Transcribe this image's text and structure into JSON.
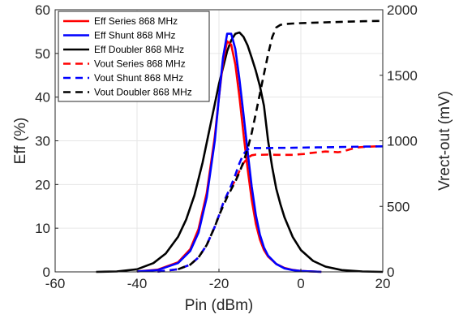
{
  "chart_data": {
    "type": "line",
    "xlabel": "Pin (dBm)",
    "ylabel": "Eff (%)",
    "y2label": "Vrect-out (mV)",
    "xlim": [
      -60,
      20
    ],
    "ylim": [
      0,
      60
    ],
    "y2lim": [
      0,
      2000
    ],
    "xticks": [
      "-60",
      "-40",
      "-20",
      "0",
      "20"
    ],
    "yticks": [
      "0",
      "10",
      "20",
      "30",
      "40",
      "50",
      "60"
    ],
    "y2ticks": [
      "0",
      "500",
      "1000",
      "1500",
      "2000"
    ],
    "grid": true,
    "legend_position": "top-left",
    "series": [
      {
        "name": "Eff Series 868 MHz",
        "axis": "left",
        "color": "#ff0000",
        "dash": "solid",
        "x": [
          -40,
          -35,
          -30,
          -27,
          -25,
          -23,
          -21,
          -20,
          -19,
          -18,
          -17,
          -16,
          -15,
          -14,
          -13,
          -12,
          -11,
          -10,
          -9,
          -8,
          -6,
          -4,
          -2,
          0,
          5
        ],
        "y": [
          0.1,
          0.5,
          2.2,
          5.2,
          9.8,
          18,
          31,
          40,
          48,
          52.8,
          52,
          47.5,
          40,
          31.5,
          23.5,
          16.5,
          11,
          7.4,
          5,
          3.5,
          1.8,
          0.9,
          0.45,
          0.2,
          0
        ]
      },
      {
        "name": "Eff Shunt 868 MHz",
        "axis": "left",
        "color": "#0000ff",
        "dash": "solid",
        "x": [
          -40,
          -35,
          -30,
          -27,
          -25,
          -23,
          -21,
          -20,
          -19,
          -18,
          -17,
          -16,
          -15,
          -14,
          -13,
          -12,
          -11,
          -10,
          -9,
          -8,
          -6,
          -4,
          -2,
          0,
          5
        ],
        "y": [
          0.1,
          0.4,
          2,
          4.8,
          9,
          17,
          30,
          40,
          49,
          54.5,
          54.5,
          51,
          44,
          36,
          27.5,
          19.5,
          13,
          8.5,
          5.6,
          3.7,
          1.8,
          0.8,
          0.4,
          0.2,
          0
        ]
      },
      {
        "name": "Eff Doubler 868 MHz",
        "axis": "left",
        "color": "#000000",
        "dash": "solid",
        "x": [
          -50,
          -45,
          -40,
          -36,
          -33,
          -30,
          -28,
          -26,
          -24,
          -22,
          -20,
          -18,
          -17,
          -16,
          -15,
          -14,
          -13,
          -12,
          -11,
          -10,
          -9,
          -8,
          -7,
          -6,
          -5,
          -4,
          -2,
          0,
          3,
          6,
          10,
          15,
          20
        ],
        "y": [
          0,
          0.1,
          0.6,
          2,
          4.2,
          8,
          12,
          17.5,
          25,
          34,
          43,
          50.5,
          53,
          54.5,
          54.8,
          53.8,
          51.8,
          49,
          46,
          42.5,
          38,
          30,
          24,
          19,
          15.5,
          12.5,
          8,
          5,
          2.5,
          1.2,
          0.4,
          0.1,
          0
        ]
      },
      {
        "name": "Vout Series 868 MHz",
        "axis": "right",
        "color": "#ff0000",
        "dash": "dashed",
        "x": [
          -35,
          -30,
          -27,
          -25,
          -23,
          -21,
          -20,
          -19,
          -18,
          -17,
          -16,
          -15,
          -14,
          -13,
          -12,
          -11,
          -10,
          -8,
          -6,
          -4,
          -2,
          0,
          1,
          2,
          4,
          6,
          8,
          9,
          10,
          12,
          14,
          16,
          18,
          20
        ],
        "y": [
          2,
          20,
          55,
          110,
          205,
          345,
          430,
          520,
          590,
          645,
          700,
          770,
          830,
          870,
          890,
          895,
          893,
          895,
          893,
          893,
          893,
          898,
          900,
          905,
          912,
          918,
          915,
          913,
          917,
          935,
          950,
          955,
          957,
          958
        ]
      },
      {
        "name": "Vout Shunt 868 MHz",
        "axis": "right",
        "color": "#0000ff",
        "dash": "dashed",
        "x": [
          -35,
          -30,
          -27,
          -25,
          -23,
          -21,
          -20,
          -19,
          -18,
          -17,
          -16,
          -15,
          -14,
          -13,
          -12,
          -11,
          -10,
          -8,
          -6,
          -4,
          -2,
          0,
          4,
          8,
          12,
          16,
          20
        ],
        "y": [
          2,
          20,
          55,
          110,
          205,
          345,
          430,
          520,
          590,
          660,
          740,
          830,
          900,
          935,
          945,
          945,
          945,
          945,
          946,
          946,
          947,
          948,
          950,
          952,
          954,
          956,
          958
        ]
      },
      {
        "name": "Vout Doubler 868 MHz",
        "axis": "right",
        "color": "#000000",
        "dash": "dashed",
        "x": [
          -30,
          -27,
          -25,
          -23,
          -21,
          -20,
          -19,
          -18,
          -17,
          -16,
          -15,
          -14,
          -13,
          -12,
          -11,
          -10,
          -9,
          -8,
          -7,
          -6,
          -5,
          -4,
          -3,
          -2,
          0,
          5,
          10,
          15,
          20
        ],
        "y": [
          20,
          55,
          110,
          205,
          345,
          430,
          500,
          570,
          630,
          690,
          760,
          840,
          940,
          1060,
          1210,
          1360,
          1510,
          1660,
          1790,
          1865,
          1885,
          1890,
          1893,
          1895,
          1898,
          1903,
          1908,
          1912,
          1915
        ]
      }
    ]
  }
}
